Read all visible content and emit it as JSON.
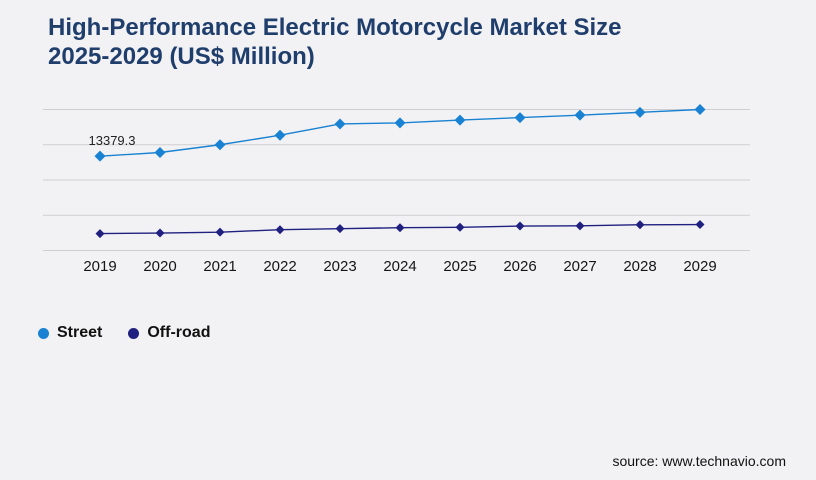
{
  "card": {
    "background": "#f2f2f4",
    "title_line1": "High-Performance Electric Motorcycle Market Size",
    "title_line2": "2025-2029 (US$ Million)",
    "title_color": "#1f3e6c",
    "source_text": "source: www.technavio.com"
  },
  "legend": {
    "items": [
      {
        "label": "Street",
        "color": "#1a82d2"
      },
      {
        "label": "Off-road",
        "color": "#202080"
      }
    ]
  },
  "chart_data": {
    "type": "line",
    "title": "High-Performance Electric Motorcycle Market Size 2025-2029 (US$ Million)",
    "categories": [
      "2019",
      "2020",
      "2021",
      "2022",
      "2023",
      "2024",
      "2025",
      "2026",
      "2027",
      "2028",
      "2029"
    ],
    "series": [
      {
        "name": "Street",
        "color": "#1a82d2",
        "marker": "diamond",
        "marker_size": 5.5,
        "values": [
          13379.3,
          13900,
          15000,
          16350,
          17950,
          18100,
          18500,
          18850,
          19200,
          19600,
          20000
        ],
        "data_labels": [
          {
            "index": 0,
            "text": "13379.3"
          }
        ]
      },
      {
        "name": "Off-road",
        "color": "#202080",
        "marker": "diamond",
        "marker_size": 4.5,
        "values": [
          2400,
          2480,
          2600,
          2950,
          3100,
          3230,
          3290,
          3470,
          3500,
          3650,
          3680
        ]
      }
    ],
    "ylim": [
      0,
      20000
    ],
    "y_gridline_step": 5000,
    "y_axis_labels_visible": false,
    "grid": true,
    "gridline_color": "#cfcfd2",
    "legend_position": "bottom-left"
  }
}
